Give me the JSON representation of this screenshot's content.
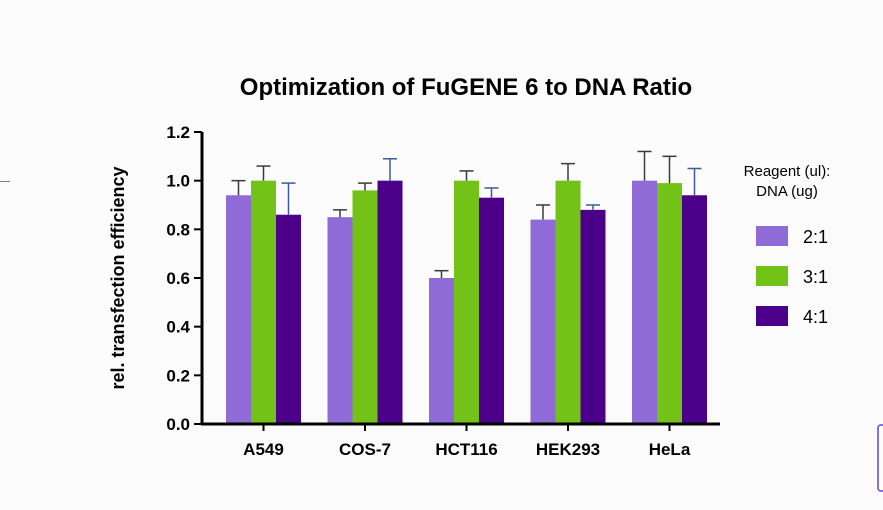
{
  "chart_data": {
    "type": "bar",
    "title": "Optimization of FuGENE 6 to DNA Ratio",
    "xlabel": "",
    "ylabel": "rel. transfection efficiency",
    "ylim": [
      0,
      1.2
    ],
    "yticks": [
      "0.0",
      "0.2",
      "0.4",
      "0.6",
      "0.8",
      "1.0",
      "1.2"
    ],
    "categories": [
      "A549",
      "COS-7",
      "HCT116",
      "HEK293",
      "HeLa"
    ],
    "series": [
      {
        "name": "2:1",
        "color": "#8f6bd8",
        "values": [
          0.94,
          0.85,
          0.6,
          0.84,
          1.0
        ],
        "errors": [
          0.06,
          0.03,
          0.03,
          0.06,
          0.12
        ]
      },
      {
        "name": "3:1",
        "color": "#73c217",
        "values": [
          1.0,
          0.96,
          1.0,
          1.0,
          0.99
        ],
        "errors": [
          0.06,
          0.03,
          0.04,
          0.07,
          0.11
        ]
      },
      {
        "name": "4:1",
        "color": "#4c008a",
        "values": [
          0.86,
          1.0,
          0.93,
          0.88,
          0.94
        ],
        "errors": [
          0.13,
          0.09,
          0.04,
          0.02,
          0.11
        ]
      }
    ],
    "legend": {
      "title_line1": "Reagent (ul):",
      "title_line2": "DNA (ug)",
      "position": "right"
    },
    "errorbar_colors": {
      "2:1": "#3a3a3a",
      "3:1": "#3a3a3a",
      "4:1": "#3b5b9a"
    }
  }
}
